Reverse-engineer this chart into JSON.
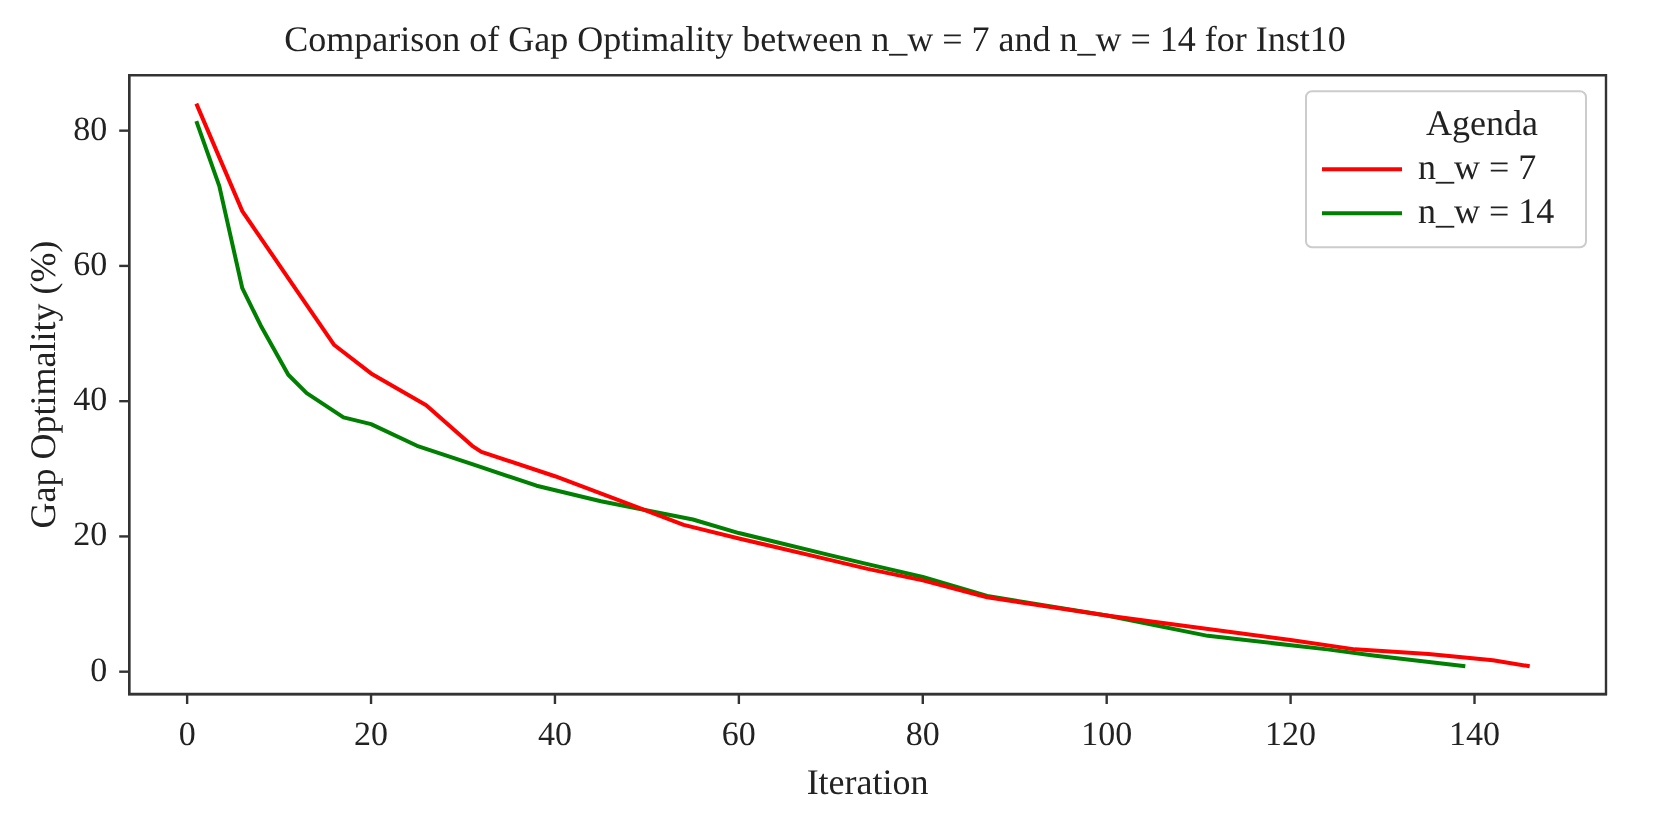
{
  "chart_data": {
    "type": "line",
    "title": "Comparison of Gap Optimality between n_w = 7 and n_w = 14 for Inst10",
    "xlabel": "Iteration",
    "ylabel": "Gap Optimality (%)",
    "legend_title": "Agenda",
    "legend": "top right",
    "grid": false,
    "marker": "none",
    "line_style": "solid",
    "xlim": [
      -6.3,
      154.3
    ],
    "xticks": [
      0,
      20,
      40,
      60,
      80,
      100,
      120,
      140
    ],
    "ylim": [
      -3.3,
      88.2
    ],
    "yticks": [
      0,
      20,
      40,
      60,
      80
    ],
    "series": [
      {
        "name": "n_w = 7",
        "color": "#ff0000",
        "x": [
          1,
          6,
          12,
          16,
          20,
          26,
          31,
          32,
          40,
          49,
          54,
          60,
          70,
          74,
          80,
          87,
          100,
          110,
          120,
          127,
          135,
          142,
          146
        ],
        "values": [
          84,
          68.1,
          56.2,
          48.3,
          44.1,
          39.4,
          33.4,
          32.5,
          28.9,
          24.3,
          21.7,
          19.7,
          16.5,
          15.2,
          13.5,
          11,
          8.3,
          6.5,
          4.7,
          3.3,
          2.6,
          1.7,
          0.8
        ]
      },
      {
        "name": "n_w = 14",
        "color": "#008000",
        "x": [
          1,
          3.5,
          6,
          8,
          11,
          13,
          17,
          20,
          25,
          31,
          38,
          45,
          55,
          60,
          70,
          74,
          80,
          87,
          100,
          111,
          124,
          129,
          139
        ],
        "values": [
          81.4,
          71.8,
          56.7,
          51.2,
          43.9,
          41.2,
          37.6,
          36.6,
          33.4,
          30.7,
          27.5,
          25.2,
          22.5,
          20.5,
          17.2,
          15.9,
          14,
          11.2,
          8.3,
          5.3,
          3.3,
          2.4,
          0.8
        ]
      }
    ]
  }
}
